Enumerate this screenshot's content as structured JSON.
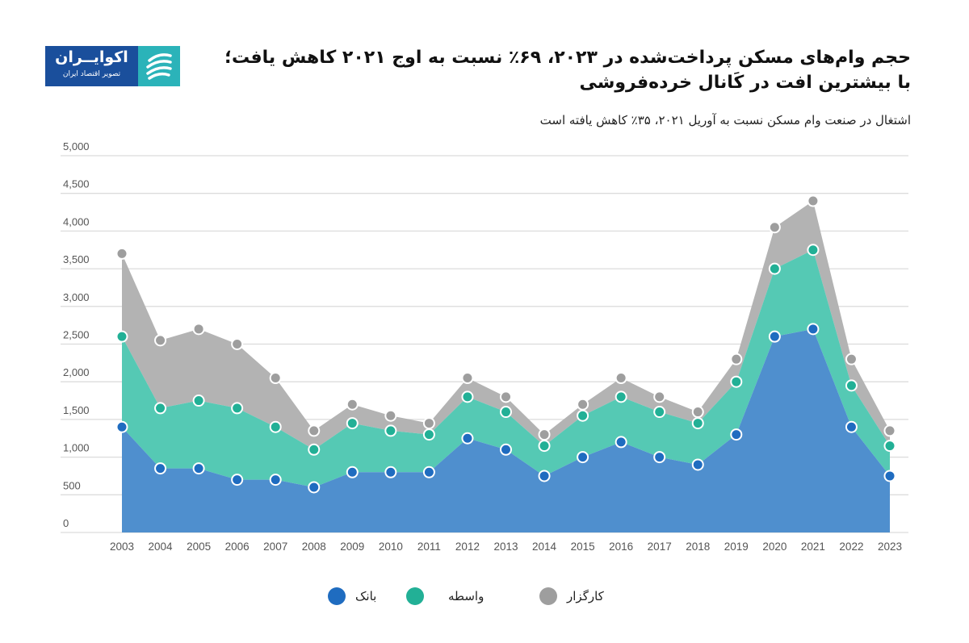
{
  "header": {
    "title_line1": "حجم وام‌های مسکن پرداخت‌شده در ۲۰۲۳، ۶۹٪ نسبت به اوج ۲۰۲۱ کاهش یافت؛",
    "title_line2": "با بیشترین افت در کَانال خرده‌فروشی",
    "subtitle": "اشتغال در صنعت وام مسکن نسبت به آوریل ۲۰۲۱، ۳۵٪ کاهش یافته است"
  },
  "logo": {
    "name": "اکوایــران",
    "tagline": "تصویر اقتصاد ایران"
  },
  "colors": {
    "bank": "#4f8fce",
    "bank_marker": "#1f6cc0",
    "broker_green": "#55c9b4",
    "broker_green_marker": "#22b096",
    "broker_grey": "#b3b3b3",
    "broker_grey_marker": "#9e9e9e",
    "grid": "#dcdcdc"
  },
  "chart_data": {
    "type": "area",
    "stacked": true,
    "categories": [
      "2003",
      "2004",
      "2005",
      "2006",
      "2007",
      "2008",
      "2009",
      "2010",
      "2011",
      "2012",
      "2013",
      "2014",
      "2015",
      "2016",
      "2017",
      "2018",
      "2019",
      "2020",
      "2021",
      "2022",
      "2023"
    ],
    "series": [
      {
        "name": "بانک",
        "color": "#4f8fce",
        "values": [
          1400,
          850,
          850,
          700,
          700,
          600,
          800,
          800,
          800,
          1250,
          1100,
          750,
          1000,
          1200,
          1000,
          900,
          1300,
          2600,
          2700,
          1400,
          750
        ]
      },
      {
        "name": "واسطه",
        "color": "#55c9b4",
        "values": [
          1200,
          800,
          900,
          950,
          700,
          500,
          650,
          550,
          500,
          550,
          500,
          400,
          550,
          600,
          600,
          550,
          700,
          900,
          1050,
          550,
          400
        ]
      },
      {
        "name": "کارگزار",
        "color": "#b3b3b3",
        "values": [
          1100,
          900,
          950,
          850,
          650,
          250,
          250,
          200,
          150,
          250,
          200,
          150,
          150,
          250,
          200,
          150,
          300,
          550,
          650,
          350,
          200
        ]
      }
    ],
    "ylim": [
      0,
      5000
    ],
    "yticks": [
      "0",
      "500",
      "1,000",
      "1,500",
      "2,000",
      "2,500",
      "3,000",
      "3,500",
      "4,000",
      "4,500",
      "5,000"
    ],
    "grid": true,
    "legend_placement": "bottom"
  }
}
